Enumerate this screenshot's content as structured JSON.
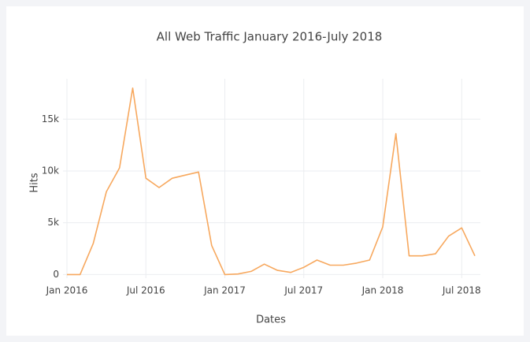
{
  "chart_data": {
    "type": "line",
    "title": "All Web Traffic January 2016-July 2018",
    "xlabel": "Dates",
    "ylabel": "Hits",
    "x": [
      "2016-01",
      "2016-02",
      "2016-03",
      "2016-04",
      "2016-05",
      "2016-06",
      "2016-07",
      "2016-08",
      "2016-09",
      "2016-10",
      "2016-11",
      "2016-12",
      "2017-01",
      "2017-02",
      "2017-03",
      "2017-04",
      "2017-05",
      "2017-06",
      "2017-07",
      "2017-08",
      "2017-09",
      "2017-10",
      "2017-11",
      "2017-12",
      "2018-01",
      "2018-02",
      "2018-03",
      "2018-04",
      "2018-05",
      "2018-06",
      "2018-07",
      "2018-08"
    ],
    "values": [
      0,
      0,
      3000,
      8000,
      10300,
      18000,
      9300,
      8400,
      9300,
      9600,
      9900,
      2800,
      0,
      50,
      300,
      1000,
      400,
      200,
      700,
      1400,
      900,
      900,
      1100,
      1400,
      4600,
      13600,
      1800,
      1800,
      2000,
      3700,
      4500,
      1800
    ],
    "color": "#f7a85e",
    "xlim": [
      "2016-01",
      "2018-08"
    ],
    "xticks": [
      {
        "value": "2016-01",
        "label": "Jan 2016"
      },
      {
        "value": "2016-07",
        "label": "Jul 2016"
      },
      {
        "value": "2017-01",
        "label": "Jan 2017"
      },
      {
        "value": "2017-07",
        "label": "Jul 2017"
      },
      {
        "value": "2018-01",
        "label": "Jan 2018"
      },
      {
        "value": "2018-07",
        "label": "Jul 2018"
      }
    ],
    "ylim": [
      -200,
      18900
    ],
    "yticks": [
      0,
      {
        "value": 5000,
        "label": "5k"
      },
      {
        "value": 10000,
        "label": "10k"
      },
      {
        "value": 15000,
        "label": "15k"
      }
    ],
    "grid": true
  }
}
